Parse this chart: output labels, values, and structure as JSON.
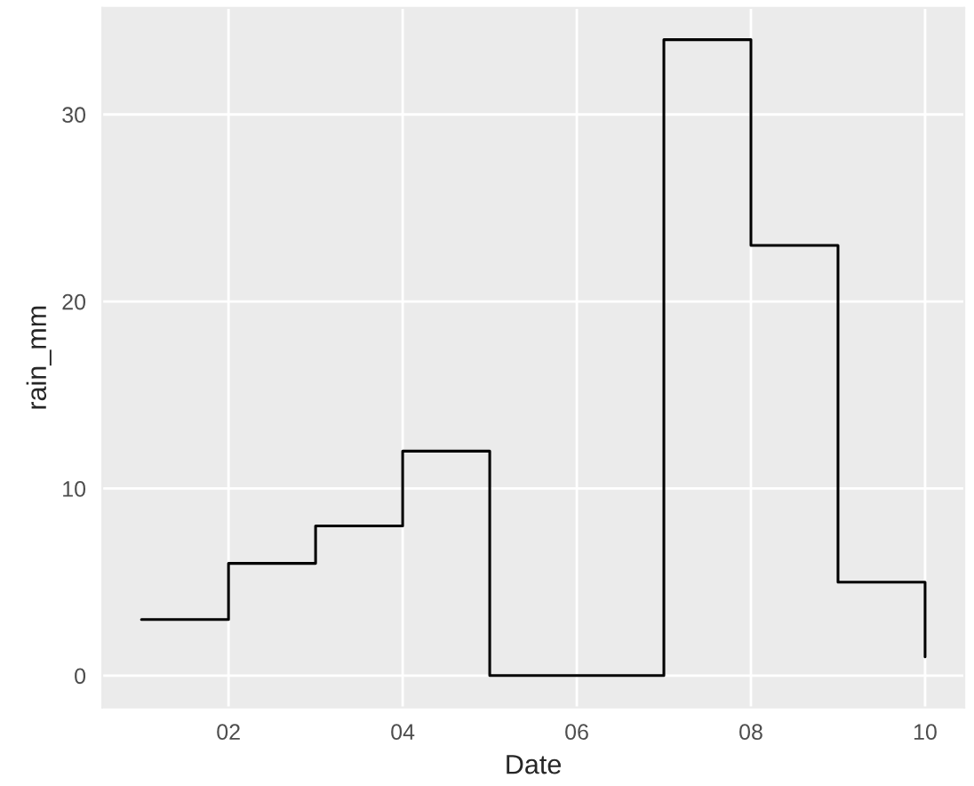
{
  "chart_data": {
    "type": "step",
    "xlabel": "Date",
    "ylabel": "rain_mm",
    "x": [
      1,
      2,
      3,
      4,
      5,
      6,
      7,
      8,
      9,
      10
    ],
    "series": [
      {
        "color": "#000000",
        "values": [
          3,
          6,
          8,
          12,
          0,
          0,
          34,
          23,
          5,
          1
        ]
      }
    ],
    "xlim": [
      0.55,
      10.45
    ],
    "xticks": [
      {
        "value": 2,
        "label": "02"
      },
      {
        "value": 4,
        "label": "04"
      },
      {
        "value": 6,
        "label": "06"
      },
      {
        "value": 8,
        "label": "08"
      },
      {
        "value": 10,
        "label": "10"
      }
    ],
    "ylim": [
      -1.7,
      35.7
    ],
    "yticks": [
      0,
      10,
      20,
      30
    ],
    "grid": true,
    "legend": false
  }
}
